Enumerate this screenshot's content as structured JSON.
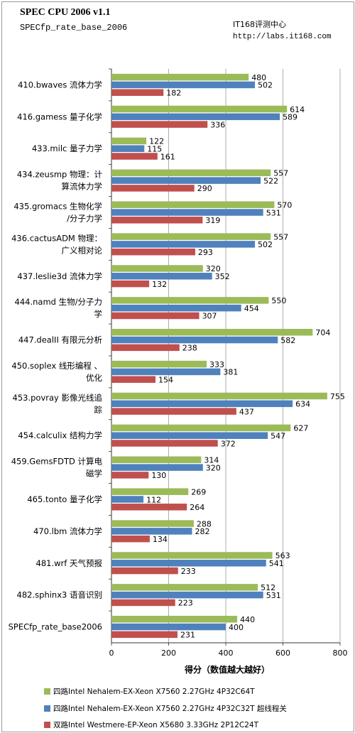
{
  "header": {
    "title": "SPEC CPU 2006 v1.1",
    "subtitle": "SPECfp_rate_base_2006",
    "site": "IT168评测中心",
    "url": "http://labs.it168.com"
  },
  "colors": {
    "series": [
      "#9bbb59",
      "#4f81bd",
      "#c0504d"
    ],
    "grid": "#888888"
  },
  "chart_data": {
    "type": "bar",
    "orientation": "horizontal",
    "title": "SPEC CPU 2006 v1.1",
    "subtitle": "SPECfp_rate_base_2006",
    "xlabel": "得分（数值越大越好）",
    "ylabel": "",
    "xlim": [
      0,
      800
    ],
    "xticks": [
      0,
      200,
      400,
      600,
      800
    ],
    "grid": true,
    "legend": "bottom",
    "categories": [
      [
        "410.bwaves 流体力学"
      ],
      [
        "416.gamess 量子化学"
      ],
      [
        "433.milc 量子力学"
      ],
      [
        "434.zeusmp 物理：计",
        "算流体力学"
      ],
      [
        "435.gromacs 生物化学",
        "/分子力学"
      ],
      [
        "436.cactusADM 物理：",
        "广义相对论"
      ],
      [
        "437.leslie3d 流体力学"
      ],
      [
        "444.namd 生物/分子力",
        "学"
      ],
      [
        "447.dealII 有限元分析"
      ],
      [
        "450.soplex 线形编程 、",
        "优化"
      ],
      [
        "453.povray 影像光线追",
        "踪"
      ],
      [
        "454.calculix 结构力学"
      ],
      [
        "459.GemsFDTD 计算电",
        "磁学"
      ],
      [
        "465.tonto 量子化学"
      ],
      [
        "470.lbm 流体力学"
      ],
      [
        "481.wrf 天气预报"
      ],
      [
        "482.sphinx3 语音识别"
      ],
      [
        "SPECfp_rate_base2006"
      ]
    ],
    "series": [
      {
        "name": "四路Intel Nehalem-EX-Xeon X7560 2.27GHz 4P32C64T",
        "values": [
          480,
          614,
          122,
          557,
          570,
          557,
          320,
          550,
          704,
          333,
          755,
          627,
          314,
          269,
          288,
          563,
          512,
          440
        ]
      },
      {
        "name": "四路Intel Nehalem-EX-Xeon X7560 2.27GHz 4P32C32T 超线程关",
        "values": [
          502,
          589,
          115,
          522,
          531,
          502,
          352,
          454,
          582,
          381,
          634,
          547,
          320,
          112,
          282,
          541,
          531,
          400
        ]
      },
      {
        "name": "双路Intel Westmere-EP-Xeon X5680 3.33GHz 2P12C24T",
        "values": [
          182,
          336,
          161,
          290,
          319,
          293,
          132,
          307,
          238,
          154,
          437,
          372,
          130,
          264,
          134,
          233,
          223,
          231
        ]
      }
    ]
  }
}
